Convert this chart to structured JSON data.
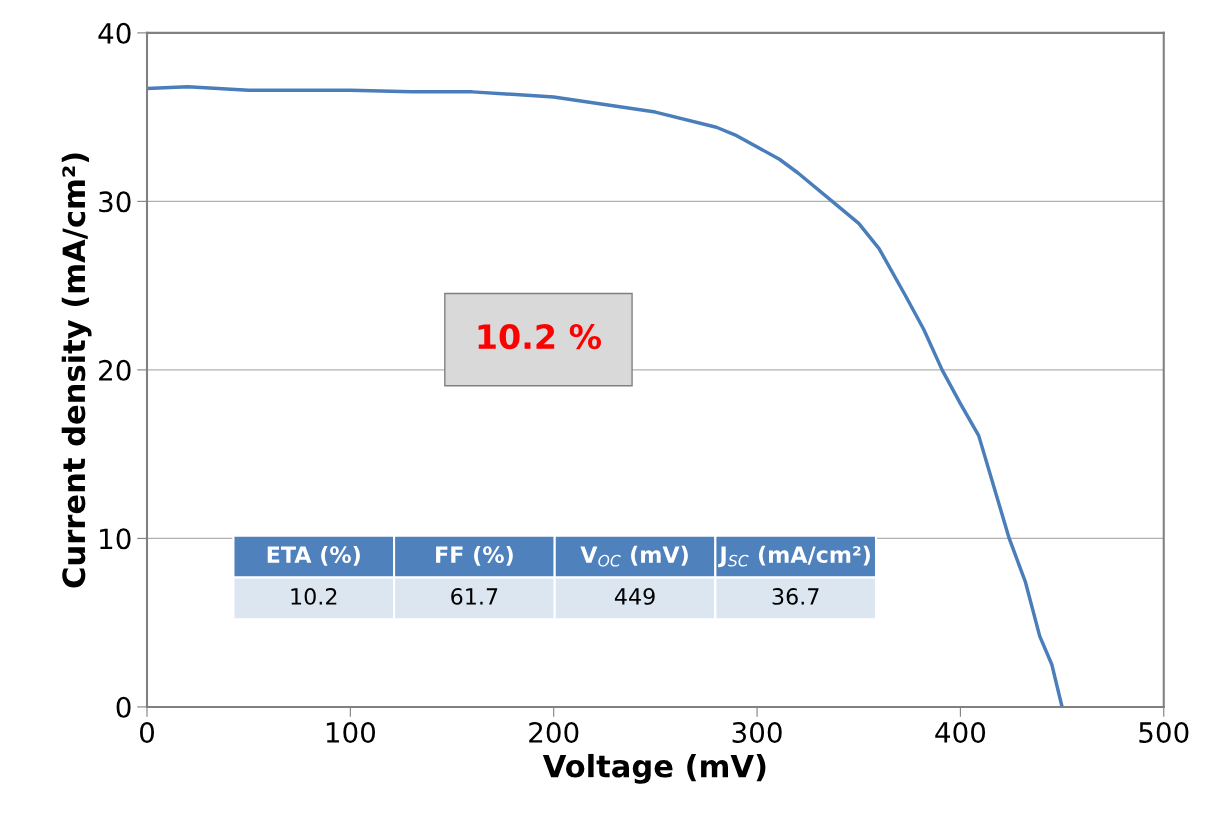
{
  "chart_data": {
    "type": "line",
    "xlabel": "Voltage (mV)",
    "ylabel": "Current density (mA/cm²)",
    "x": [
      0,
      20,
      50,
      100,
      130,
      160,
      200,
      250,
      280,
      290,
      311,
      320,
      337,
      350,
      360,
      373,
      382,
      391,
      400,
      409,
      424,
      432,
      439,
      445,
      450
    ],
    "series": [
      {
        "color": "#4a7ebb",
        "values": [
          36.7,
          36.8,
          36.6,
          36.6,
          36.5,
          36.5,
          36.2,
          35.3,
          34.4,
          33.9,
          32.5,
          31.7,
          30,
          28.7,
          27.2,
          24.4,
          22.4,
          20,
          18.0,
          16.1,
          10,
          7.4,
          4.2,
          2.5,
          0
        ]
      }
    ],
    "xlim": [
      0,
      500
    ],
    "xticks": [
      0,
      100,
      200,
      300,
      400,
      500
    ],
    "ylim": [
      0,
      40
    ],
    "yticks": [
      0,
      10,
      20,
      30,
      40
    ],
    "grid": "y",
    "marker": "none",
    "line_style": "solid",
    "annotations": [
      "10.2 %",
      "ETA (%)",
      "FF (%)",
      "V$_{OC}$ (mV)",
      "J$_{SC}$ (mA/cm²)",
      "10.2",
      "61.7",
      "449",
      "36.7"
    ]
  }
}
